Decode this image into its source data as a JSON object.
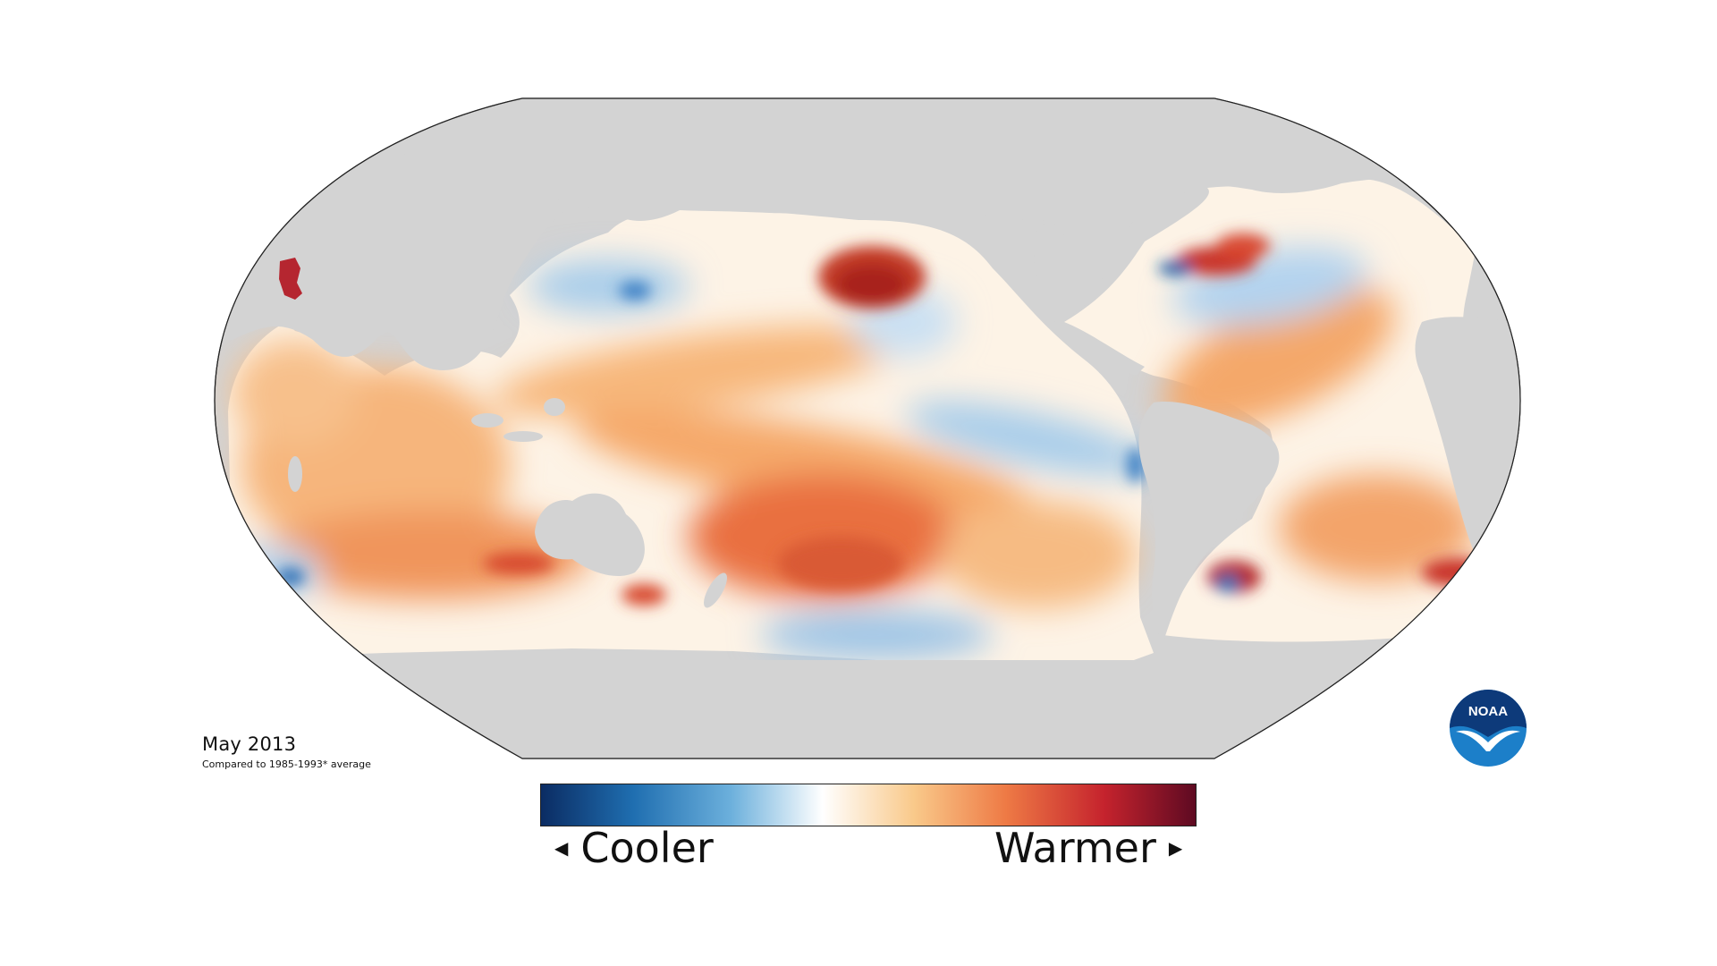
{
  "caption": {
    "date": "May 2013",
    "note": "Compared to 1985-1993* average"
  },
  "legend": {
    "cooler_label": "Cooler",
    "warmer_label": "Warmer",
    "left_arrow_icon": "triangle-left-icon",
    "right_arrow_icon": "triangle-right-icon",
    "gradient_colors": [
      "#0b2c63",
      "#1f6eb0",
      "#6cb0dc",
      "#ffffff",
      "#f9c98a",
      "#ee7a45",
      "#c5232d",
      "#5e0a22"
    ]
  },
  "logo": {
    "text": "NOAA",
    "icon": "noaa-seagull-logo"
  },
  "colors": {
    "land": "#d3d3d3",
    "ocean_neutral": "#fdf7ee",
    "warm_light": "#f8c18c",
    "warm": "#ee8a55",
    "warm_strong": "#d2452f",
    "hot": "#a91d2a",
    "cool": "#9dc5e8",
    "cool_strong": "#3b7fc4"
  }
}
